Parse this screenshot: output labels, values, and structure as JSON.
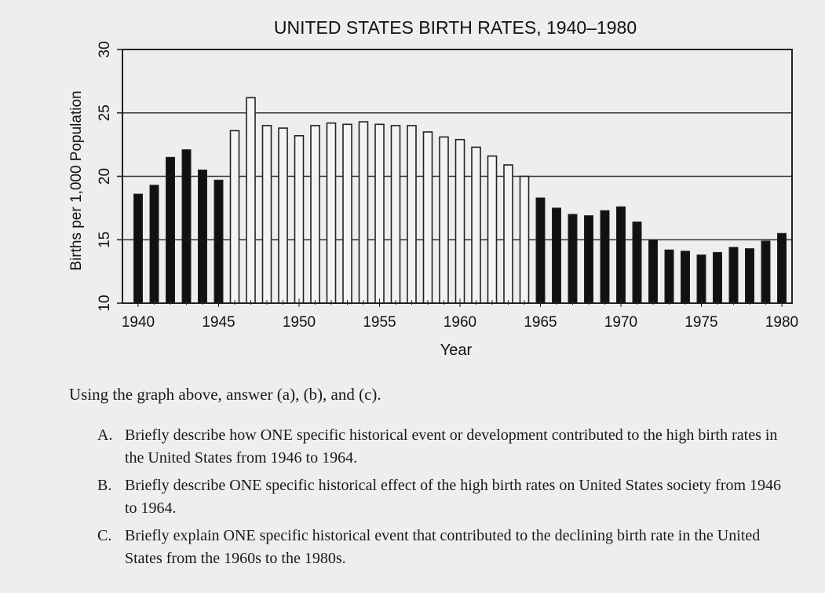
{
  "chart_data": {
    "type": "bar",
    "title": "UNITED STATES BIRTH RATES, 1940–1980",
    "xlabel": "Year",
    "ylabel": "Births per 1,000 Population",
    "ylim": [
      10,
      30
    ],
    "yticks": [
      10,
      15,
      20,
      25,
      30
    ],
    "xticks": [
      1940,
      1945,
      1950,
      1955,
      1960,
      1965,
      1970,
      1975,
      1980
    ],
    "grid": "horizontal",
    "highlight_range": [
      1946,
      1964
    ],
    "colors": {
      "dark_bar": "#111111",
      "highlight_bar": "#f4f4f4",
      "outline": "#222222",
      "background": "#eeeeee"
    },
    "categories": [
      1940,
      1941,
      1942,
      1943,
      1944,
      1945,
      1946,
      1947,
      1948,
      1949,
      1950,
      1951,
      1952,
      1953,
      1954,
      1955,
      1956,
      1957,
      1958,
      1959,
      1960,
      1961,
      1962,
      1963,
      1964,
      1965,
      1966,
      1967,
      1968,
      1969,
      1970,
      1971,
      1972,
      1973,
      1974,
      1975,
      1976,
      1977,
      1978,
      1979,
      1980
    ],
    "values": [
      18.6,
      19.3,
      21.5,
      22.1,
      20.5,
      19.7,
      23.6,
      26.2,
      24.0,
      23.8,
      23.2,
      24.0,
      24.2,
      24.1,
      24.3,
      24.1,
      24.0,
      24.0,
      23.5,
      23.1,
      22.9,
      22.3,
      21.6,
      20.9,
      20.0,
      18.3,
      17.5,
      17.0,
      16.9,
      17.3,
      17.6,
      16.4,
      15.0,
      14.2,
      14.1,
      13.8,
      14.0,
      14.4,
      14.3,
      14.9,
      15.5
    ]
  },
  "questions": {
    "intro": "Using the graph above, answer (a), (b), and (c).",
    "items": [
      {
        "letter": "A.",
        "text": "Briefly describe how ONE specific historical event or development contributed to the high birth rates in the United States from 1946 to 1964."
      },
      {
        "letter": "B.",
        "text": "Briefly describe ONE specific historical effect of the high birth rates on United States society from 1946 to 1964."
      },
      {
        "letter": "C.",
        "text": "Briefly explain ONE specific historical event that contributed to the declining birth rate in the United States from the 1960s to the 1980s."
      }
    ]
  }
}
